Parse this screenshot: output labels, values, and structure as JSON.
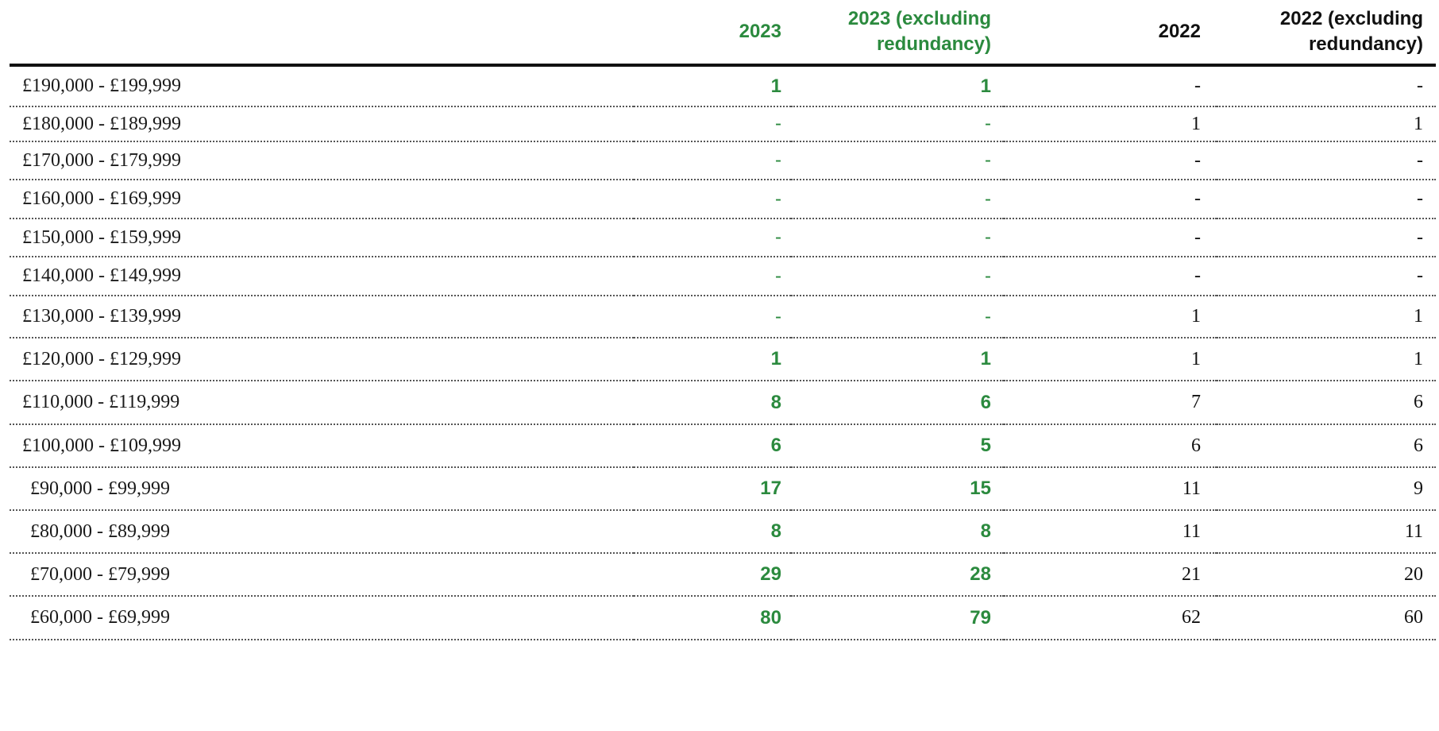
{
  "table": {
    "headers": [
      "",
      "2023",
      "2023 (excluding redundancy)",
      "2022",
      "2022 (excluding redundancy)"
    ],
    "rows": [
      {
        "band": "£190,000 - £199,999",
        "y2023": "1",
        "y2023_ex": "1",
        "y2022": "-",
        "y2022_ex": "-"
      },
      {
        "band": "£180,000 - £189,999",
        "y2023": "-",
        "y2023_ex": "-",
        "y2022": "1",
        "y2022_ex": "1"
      },
      {
        "band": "£170,000 - £179,999",
        "y2023": "-",
        "y2023_ex": "-",
        "y2022": "-",
        "y2022_ex": "-"
      },
      {
        "band": "£160,000 - £169,999",
        "y2023": "-",
        "y2023_ex": "-",
        "y2022": "-",
        "y2022_ex": "-"
      },
      {
        "band": "£150,000 - £159,999",
        "y2023": "-",
        "y2023_ex": "-",
        "y2022": "-",
        "y2022_ex": "-"
      },
      {
        "band": "£140,000 - £149,999",
        "y2023": "-",
        "y2023_ex": "-",
        "y2022": "-",
        "y2022_ex": "-"
      },
      {
        "band": "£130,000 - £139,999",
        "y2023": "-",
        "y2023_ex": "-",
        "y2022": "1",
        "y2022_ex": "1"
      },
      {
        "band": "£120,000 - £129,999",
        "y2023": "1",
        "y2023_ex": "1",
        "y2022": "1",
        "y2022_ex": "1"
      },
      {
        "band": "£110,000 - £119,999",
        "y2023": "8",
        "y2023_ex": "6",
        "y2022": "7",
        "y2022_ex": "6"
      },
      {
        "band": "£100,000 - £109,999",
        "y2023": "6",
        "y2023_ex": "5",
        "y2022": "6",
        "y2022_ex": "6"
      },
      {
        "band": "£90,000 - £99,999",
        "y2023": "17",
        "y2023_ex": "15",
        "y2022": "11",
        "y2022_ex": "9"
      },
      {
        "band": "£80,000 - £89,999",
        "y2023": "8",
        "y2023_ex": "8",
        "y2022": "11",
        "y2022_ex": "11"
      },
      {
        "band": "£70,000 - £79,999",
        "y2023": "29",
        "y2023_ex": "28",
        "y2022": "21",
        "y2022_ex": "20"
      },
      {
        "band": "£60,000 - £69,999",
        "y2023": "80",
        "y2023_ex": "79",
        "y2022": "62",
        "y2022_ex": "60"
      }
    ]
  },
  "colors": {
    "current_year": "#2b8a3e",
    "prior_year": "#111111",
    "rule": "#111111",
    "row_divider": "#555555"
  }
}
